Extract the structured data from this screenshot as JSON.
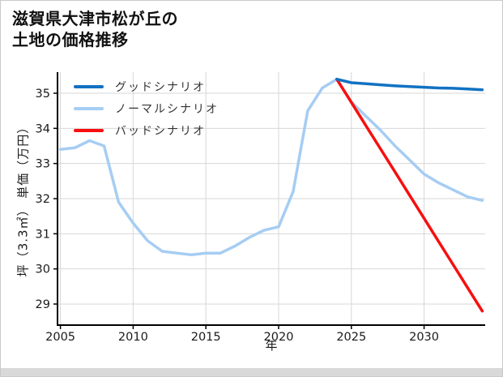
{
  "page": {
    "title_line1": "滋賀県大津市松が丘の",
    "title_line2": "土地の価格推移"
  },
  "chart_data": {
    "type": "line",
    "title": "滋賀県大津市松が丘の土地の価格推移",
    "xlabel": "年",
    "ylabel": "坪（3.3㎡） 単価（万円）",
    "xlim": [
      2004.8,
      2034.2
    ],
    "ylim": [
      28.4,
      35.6
    ],
    "xticks": [
      2005,
      2010,
      2015,
      2020,
      2025,
      2030
    ],
    "yticks": [
      29,
      30,
      31,
      32,
      33,
      34,
      35
    ],
    "grid": true,
    "grid_color": "#d7d7d7",
    "legend_position": "upper-left",
    "series": [
      {
        "name": "グッドシナリオ",
        "id": "good-scenario",
        "color": "#1172c2",
        "x": [
          2024,
          2025,
          2026,
          2027,
          2028,
          2029,
          2030,
          2031,
          2032,
          2033,
          2034
        ],
        "values": [
          35.4,
          35.3,
          35.27,
          35.24,
          35.21,
          35.19,
          35.17,
          35.15,
          35.14,
          35.12,
          35.1
        ]
      },
      {
        "name": "ノーマルシナリオ",
        "id": "normal-scenario",
        "color": "#a6cdf3",
        "x": [
          2005,
          2006,
          2007,
          2008,
          2009,
          2010,
          2011,
          2012,
          2013,
          2014,
          2015,
          2016,
          2017,
          2018,
          2019,
          2020,
          2021,
          2022,
          2023,
          2024,
          2025,
          2026,
          2027,
          2028,
          2029,
          2030,
          2031,
          2032,
          2033,
          2034
        ],
        "values": [
          33.4,
          33.45,
          33.65,
          33.5,
          31.9,
          31.3,
          30.8,
          30.5,
          30.45,
          30.4,
          30.45,
          30.45,
          30.65,
          30.9,
          31.1,
          31.2,
          32.2,
          34.5,
          35.15,
          35.4,
          34.75,
          34.35,
          33.95,
          33.5,
          33.1,
          32.7,
          32.45,
          32.25,
          32.05,
          31.95
        ]
      },
      {
        "name": "バッドシナリオ",
        "id": "bad-scenario",
        "color": "#f80e0e",
        "x": [
          2024,
          2025,
          2026,
          2027,
          2028,
          2029,
          2030,
          2031,
          2032,
          2033,
          2034
        ],
        "values": [
          35.4,
          34.74,
          34.08,
          33.42,
          32.76,
          32.1,
          31.44,
          30.78,
          30.12,
          29.46,
          28.8
        ]
      }
    ]
  }
}
